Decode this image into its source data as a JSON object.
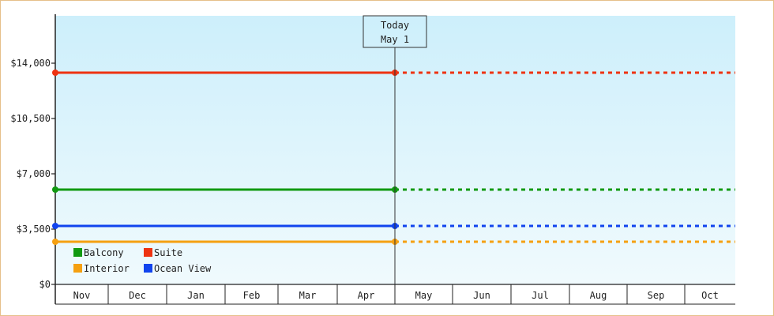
{
  "chart_data": {
    "type": "line",
    "categories": [
      "Nov",
      "Dec",
      "Jan",
      "Feb",
      "Mar",
      "Apr",
      "May",
      "Jun",
      "Jul",
      "Aug",
      "Sep",
      "Oct"
    ],
    "ylim": [
      0,
      17000
    ],
    "y_ticks": [
      "$0",
      "$3,500",
      "$7,000",
      "$10,500",
      "$14,000"
    ],
    "y_tick_values": [
      0,
      3500,
      7000,
      10500,
      14000
    ],
    "today": {
      "label": "Today",
      "date": "May 1"
    },
    "series": [
      {
        "name": "Suite",
        "color": "#ee3311",
        "value": 13400
      },
      {
        "name": "Balcony",
        "color": "#119911",
        "value": 6000
      },
      {
        "name": "Ocean View",
        "color": "#1144ee",
        "value": 3700
      },
      {
        "name": "Interior",
        "color": "#f5a011",
        "value": 2700
      }
    ],
    "legend": {
      "placement": "bottom-left",
      "rows": [
        [
          "Balcony",
          "Suite"
        ],
        [
          "Interior",
          "Ocean View"
        ]
      ]
    },
    "background_gradient": [
      "#cdeffb",
      "#f0fafd"
    ]
  }
}
